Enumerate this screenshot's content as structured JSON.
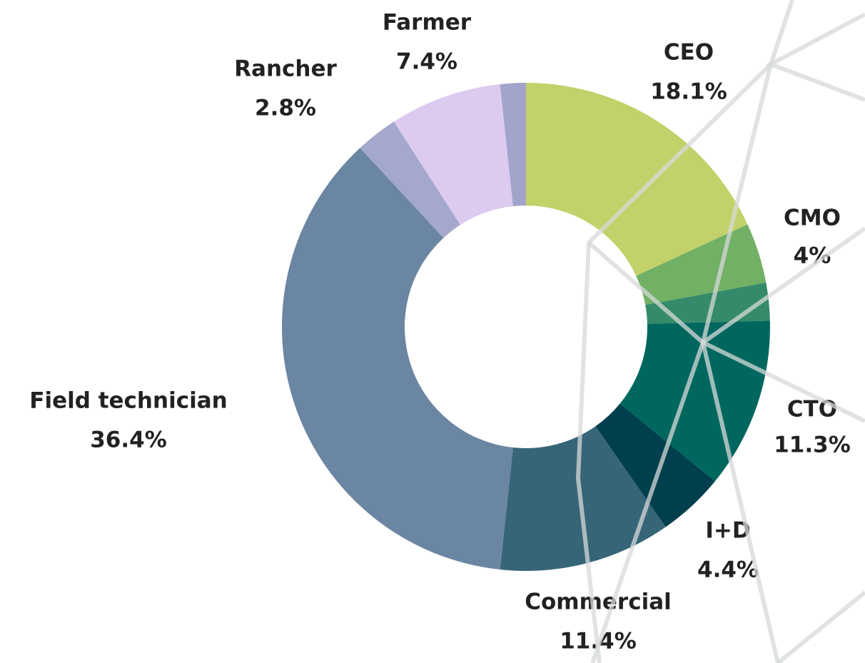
{
  "chart_data": {
    "type": "donut",
    "categories": [
      "CEO",
      "CMO",
      null,
      "CTO",
      "I+D",
      "Commercial",
      "Field technician",
      "Rancher",
      "Farmer",
      null
    ],
    "values": [
      18.1,
      4,
      2.5,
      11.3,
      4.4,
      11.4,
      36.4,
      2.8,
      7.4,
      1.7
    ],
    "value_labels": [
      "18.1%",
      "4%",
      null,
      "11.3%",
      "4.4%",
      "11.4%",
      "36.4%",
      "2.8%",
      "7.4%",
      null
    ],
    "colors": [
      "#c2d16a",
      "#72b065",
      "#358a6a",
      "#00675f",
      "#003f4d",
      "#366577",
      "#6b86a3",
      "#a4a8cc",
      "#dccbef",
      "#a3a4cc"
    ]
  }
}
